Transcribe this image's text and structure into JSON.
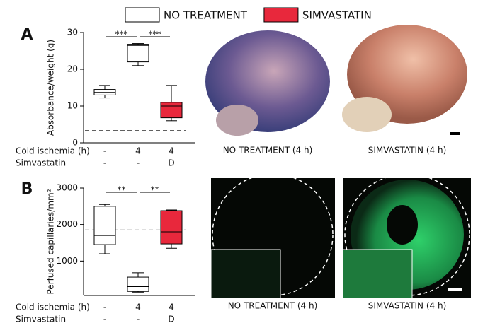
{
  "legend": [
    {
      "name": "NO TREATMENT",
      "color": "#ffffff"
    },
    {
      "name": "SIMVASTATIN",
      "color": "#e8283c"
    }
  ],
  "chart_data": [
    {
      "type": "box",
      "panel": "A",
      "ylabel": "Absorbance/weight (g)",
      "ylim": [
        0,
        30
      ],
      "yticks": [
        0,
        10,
        20,
        30
      ],
      "reference_line": 3.3,
      "boxes": [
        {
          "color": "#ffffff",
          "min": 12.2,
          "q1": 13,
          "median": 13.7,
          "q3": 14.5,
          "max": 15.6
        },
        {
          "color": "#ffffff",
          "min": 21,
          "q1": 22,
          "median": 26.5,
          "q3": 26.8,
          "max": 27
        },
        {
          "color": "#e8283c",
          "min": 6,
          "q1": 6.8,
          "median": 10,
          "q3": 11,
          "max": 15.6
        }
      ],
      "significance": [
        "***",
        "***"
      ],
      "condition_rows": [
        {
          "label": "Cold ischemia (h)",
          "values": [
            "-",
            "4",
            "4"
          ]
        },
        {
          "label": "Simvastatin",
          "values": [
            "-",
            "-",
            "D"
          ]
        }
      ],
      "images": [
        {
          "caption": "NO TREATMENT (4 h)"
        },
        {
          "caption": "SIMVASTATIN (4 h)"
        }
      ]
    },
    {
      "type": "box",
      "panel": "B",
      "ylabel": "Perfused capillaries/mm²",
      "ylim": [
        0,
        3000
      ],
      "yticks": [
        1000,
        2000,
        3000
      ],
      "reference_line": 1850,
      "boxes": [
        {
          "color": "#ffffff",
          "min": 1200,
          "q1": 1450,
          "median": 1700,
          "q3": 2500,
          "max": 2550
        },
        {
          "color": "#ffffff",
          "min": 150,
          "q1": 170,
          "median": 300,
          "q3": 560,
          "max": 680
        },
        {
          "color": "#e8283c",
          "min": 1350,
          "q1": 1470,
          "median": 1800,
          "q3": 2380,
          "max": 2400
        }
      ],
      "significance": [
        "**",
        "**"
      ],
      "condition_rows": [
        {
          "label": "Cold ischemia (h)",
          "values": [
            "-",
            "4",
            "4"
          ]
        },
        {
          "label": "Simvastatin",
          "values": [
            "-",
            "-",
            "D"
          ]
        }
      ],
      "images": [
        {
          "caption": "NO TREATMENT (4 h)"
        },
        {
          "caption": "SIMVASTATIN (4 h)"
        }
      ]
    }
  ]
}
